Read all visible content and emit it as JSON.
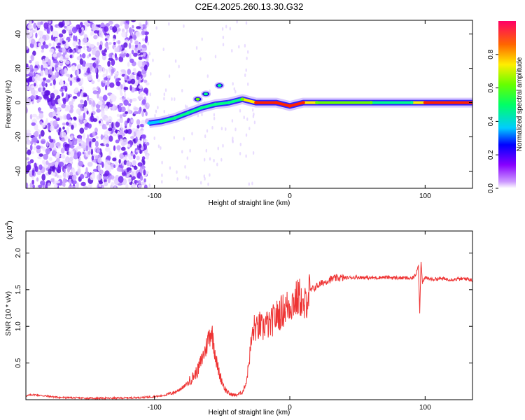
{
  "figure_title": "C2E4.2025.260.13.30.G32",
  "colormap": [
    "#ff00ff",
    "#aa66ff",
    "#7700ee",
    "#0000ff",
    "#00ccff",
    "#00ff88",
    "#66ff00",
    "#ffee00",
    "#ff8800",
    "#ff2200",
    "#ff0066"
  ],
  "trace_color": "#ee3333",
  "chart_data": [
    {
      "id": "spectrogram",
      "type": "heatmap",
      "title": "C2E4.2025.260.13.30.G32",
      "xlabel": "Height of straight line (km)",
      "ylabel": "Frequency (Hz)",
      "xlim": [
        -195,
        135
      ],
      "ylim": [
        -50,
        48
      ],
      "xticks": [
        "-100",
        "0",
        "100"
      ],
      "xtick_values": [
        -100,
        0,
        100
      ],
      "yticks": [
        "-40",
        "-20",
        "0",
        "20",
        "40"
      ],
      "ytick_values": [
        -40,
        -20,
        0,
        20,
        40
      ],
      "colorbar": {
        "label": "Normalized spectral amplitude",
        "range": [
          0,
          1
        ],
        "ticks": [
          "0.0",
          "0.2",
          "0.4",
          "0.6",
          "0.8"
        ],
        "tick_values": [
          0,
          0.2,
          0.4,
          0.6,
          0.8
        ]
      },
      "noise_region_x": [
        -195,
        -105
      ],
      "signal_track": [
        {
          "x": -104,
          "freq": -12,
          "amp": 0.4
        },
        {
          "x": -95,
          "freq": -11,
          "amp": 0.45
        },
        {
          "x": -85,
          "freq": -9,
          "amp": 0.45
        },
        {
          "x": -75,
          "freq": -6,
          "amp": 0.5
        },
        {
          "x": -65,
          "freq": -3,
          "amp": 0.5
        },
        {
          "x": -55,
          "freq": -1,
          "amp": 0.5
        },
        {
          "x": -45,
          "freq": 0,
          "amp": 0.5
        },
        {
          "x": -35,
          "freq": 2,
          "amp": 0.55
        },
        {
          "x": -25,
          "freq": 0,
          "amp": 0.85
        },
        {
          "x": -10,
          "freq": 0,
          "amp": 0.9
        },
        {
          "x": 0,
          "freq": -2,
          "amp": 0.85
        },
        {
          "x": 10,
          "freq": 0,
          "amp": 0.85
        },
        {
          "x": 20,
          "freq": 0,
          "amp": 0.55
        },
        {
          "x": 60,
          "freq": 0,
          "amp": 0.55
        },
        {
          "x": 90,
          "freq": 0,
          "amp": 0.5
        },
        {
          "x": 100,
          "freq": 0,
          "amp": 0.85
        },
        {
          "x": 135,
          "freq": 0,
          "amp": 0.9
        }
      ],
      "side_blobs": [
        {
          "x": -52,
          "freq": 10,
          "amp": 0.5
        },
        {
          "x": -62,
          "freq": 5,
          "amp": 0.5
        },
        {
          "x": -68,
          "freq": 2,
          "amp": 0.55
        }
      ]
    },
    {
      "id": "snr",
      "type": "line",
      "xlabel": "Height of straight line (km)",
      "ylabel": "SNR (10 * v/v)",
      "y_multiplier_label": "(x10",
      "y_multiplier_exponent": "4",
      "xlim": [
        -195,
        135
      ],
      "ylim": [
        0,
        2.3
      ],
      "xticks": [
        "-100",
        "0",
        "100"
      ],
      "xtick_values": [
        -100,
        0,
        100
      ],
      "yticks": [
        "0.5",
        "1.0",
        "1.5",
        "2.0"
      ],
      "ytick_values": [
        0.5,
        1.0,
        1.5,
        2.0
      ],
      "series": [
        {
          "name": "SNR",
          "x": [
            -195,
            -190,
            -170,
            -150,
            -130,
            -110,
            -95,
            -85,
            -78,
            -72,
            -68,
            -65,
            -62,
            -60,
            -58,
            -56,
            -54,
            -52,
            -50,
            -48,
            -45,
            -40,
            -35,
            -32,
            -30,
            -28,
            -26,
            -24,
            -22,
            -20,
            -18,
            -15,
            -12,
            -9,
            -6,
            -3,
            0,
            3,
            6,
            8,
            10,
            12,
            14,
            16,
            18,
            20,
            25,
            30,
            35,
            40,
            50,
            60,
            70,
            80,
            85,
            90,
            93,
            95,
            96,
            97,
            98,
            100,
            105,
            110,
            120,
            130,
            135
          ],
          "y": [
            0.05,
            0.07,
            0.03,
            0.02,
            0.02,
            0.03,
            0.05,
            0.1,
            0.18,
            0.3,
            0.4,
            0.55,
            0.7,
            0.85,
            0.95,
            0.75,
            0.5,
            0.35,
            0.25,
            0.15,
            0.08,
            0.06,
            0.1,
            0.25,
            0.55,
            0.85,
            1.0,
            0.95,
            1.02,
            0.95,
            1.05,
            1.0,
            1.1,
            1.15,
            1.2,
            1.25,
            1.3,
            1.35,
            1.38,
            1.4,
            1.2,
            1.35,
            1.45,
            1.5,
            1.52,
            1.55,
            1.6,
            1.64,
            1.66,
            1.66,
            1.67,
            1.66,
            1.67,
            1.66,
            1.66,
            1.65,
            1.7,
            1.85,
            1.2,
            1.9,
            1.6,
            1.66,
            1.64,
            1.65,
            1.64,
            1.65,
            1.63
          ]
        }
      ]
    }
  ]
}
